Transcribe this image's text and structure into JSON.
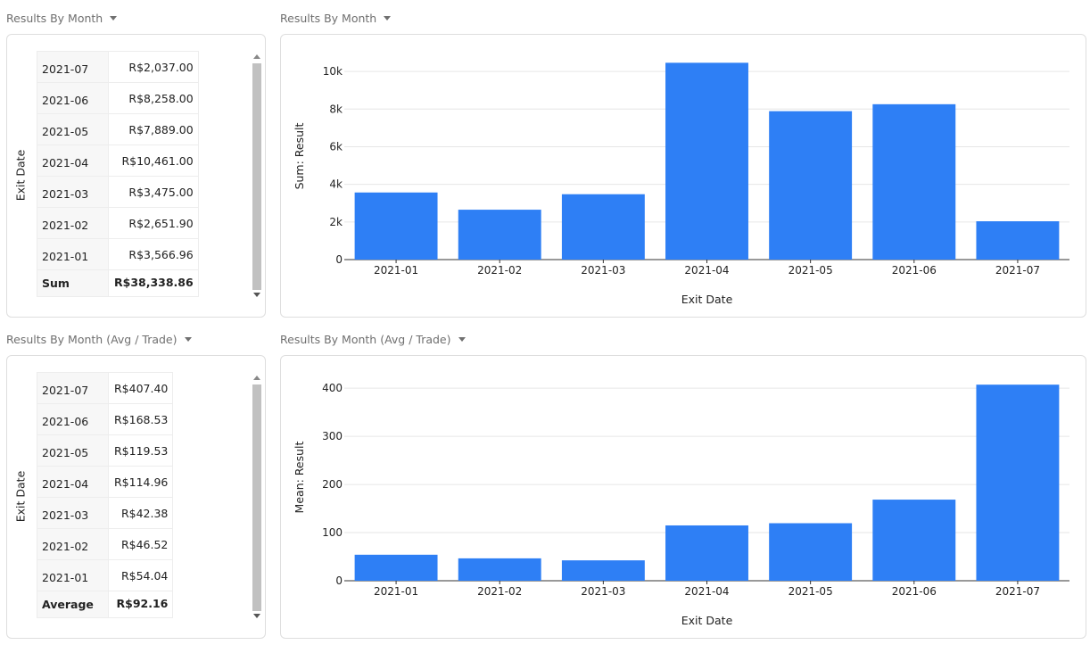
{
  "panels": {
    "p1_table_title": "Results By Month",
    "p1_chart_title": "Results By Month",
    "p2_table_title": "Results By Month (Avg / Trade)",
    "p2_chart_title": "Results By Month (Avg / Trade)"
  },
  "table1": {
    "row_axis_label": "Exit Date",
    "rows": [
      {
        "key": "2021-07",
        "value": "R$2,037.00"
      },
      {
        "key": "2021-06",
        "value": "R$8,258.00"
      },
      {
        "key": "2021-05",
        "value": "R$7,889.00"
      },
      {
        "key": "2021-04",
        "value": "R$10,461.00"
      },
      {
        "key": "2021-03",
        "value": "R$3,475.00"
      },
      {
        "key": "2021-02",
        "value": "R$2,651.90"
      },
      {
        "key": "2021-01",
        "value": "R$3,566.96"
      }
    ],
    "total_label": "Sum",
    "total_value": "R$38,338.86"
  },
  "table2": {
    "row_axis_label": "Exit Date",
    "rows": [
      {
        "key": "2021-07",
        "value": "R$407.40"
      },
      {
        "key": "2021-06",
        "value": "R$168.53"
      },
      {
        "key": "2021-05",
        "value": "R$119.53"
      },
      {
        "key": "2021-04",
        "value": "R$114.96"
      },
      {
        "key": "2021-03",
        "value": "R$42.38"
      },
      {
        "key": "2021-02",
        "value": "R$46.52"
      },
      {
        "key": "2021-01",
        "value": "R$54.04"
      }
    ],
    "total_label": "Average",
    "total_value": "R$92.16"
  },
  "chart_data": [
    {
      "type": "bar",
      "categories": [
        "2021-01",
        "2021-02",
        "2021-03",
        "2021-04",
        "2021-05",
        "2021-06",
        "2021-07"
      ],
      "values": [
        3566.96,
        2651.9,
        3475.0,
        10461.0,
        7889.0,
        8258.0,
        2037.0
      ],
      "xlabel": "Exit Date",
      "ylabel": "Sum: Result",
      "ylim": [
        0,
        11000
      ],
      "yticks": [
        0,
        2000,
        4000,
        6000,
        8000,
        10000
      ],
      "ytick_labels": [
        "0",
        "2k",
        "4k",
        "6k",
        "8k",
        "10k"
      ],
      "grid": true,
      "color": "#2e7ff5"
    },
    {
      "type": "bar",
      "categories": [
        "2021-01",
        "2021-02",
        "2021-03",
        "2021-04",
        "2021-05",
        "2021-06",
        "2021-07"
      ],
      "values": [
        54.04,
        46.52,
        42.38,
        114.96,
        119.53,
        168.53,
        407.4
      ],
      "xlabel": "Exit Date",
      "ylabel": "Mean: Result",
      "ylim": [
        0,
        430
      ],
      "yticks": [
        0,
        100,
        200,
        300,
        400
      ],
      "ytick_labels": [
        "0",
        "100",
        "200",
        "300",
        "400"
      ],
      "grid": true,
      "color": "#2e7ff5"
    }
  ]
}
